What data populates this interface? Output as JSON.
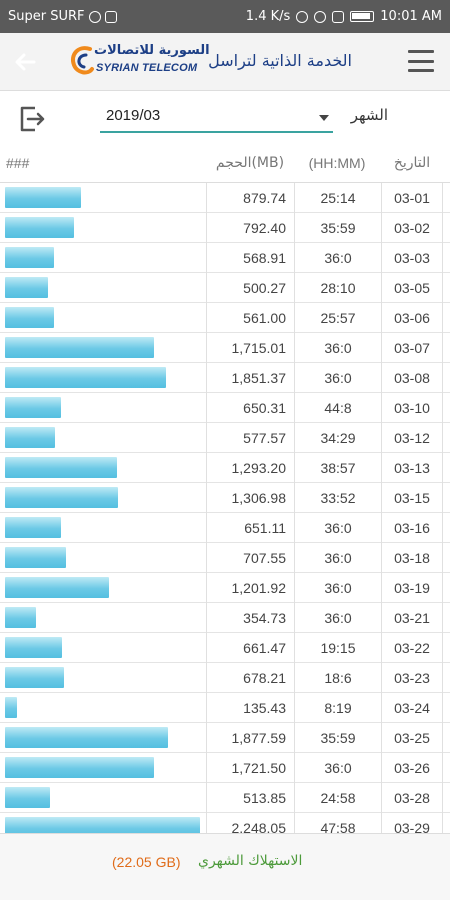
{
  "status_bar": {
    "carrier": "Super SURF",
    "speed": "1.4 K/s",
    "time": "10:01 AM"
  },
  "header": {
    "logo_arabic": "السورية للاتصالات",
    "logo_english": "SYRIAN TELECOM",
    "title": "الخدمة الذاتية لتراسل"
  },
  "filter": {
    "month_value": "2019/03",
    "month_label": "الشهر"
  },
  "table": {
    "columns": {
      "bar": "###",
      "volume": "الحجم(MB)",
      "time": "(HH:MM)",
      "date": "التاريخ"
    },
    "rows": [
      {
        "date": "03-01",
        "time": "25:14",
        "volume": "879.74",
        "mb": 879.74
      },
      {
        "date": "03-02",
        "time": "35:59",
        "volume": "792.40",
        "mb": 792.4
      },
      {
        "date": "03-03",
        "time": "36:0",
        "volume": "568.91",
        "mb": 568.91
      },
      {
        "date": "03-05",
        "time": "28:10",
        "volume": "500.27",
        "mb": 500.27
      },
      {
        "date": "03-06",
        "time": "25:57",
        "volume": "561.00",
        "mb": 561.0
      },
      {
        "date": "03-07",
        "time": "36:0",
        "volume": "1,715.01",
        "mb": 1715.01
      },
      {
        "date": "03-08",
        "time": "36:0",
        "volume": "1,851.37",
        "mb": 1851.37
      },
      {
        "date": "03-10",
        "time": "44:8",
        "volume": "650.31",
        "mb": 650.31
      },
      {
        "date": "03-12",
        "time": "34:29",
        "volume": "577.57",
        "mb": 577.57
      },
      {
        "date": "03-13",
        "time": "38:57",
        "volume": "1,293.20",
        "mb": 1293.2
      },
      {
        "date": "03-15",
        "time": "33:52",
        "volume": "1,306.98",
        "mb": 1306.98
      },
      {
        "date": "03-16",
        "time": "36:0",
        "volume": "651.11",
        "mb": 651.11
      },
      {
        "date": "03-18",
        "time": "36:0",
        "volume": "707.55",
        "mb": 707.55
      },
      {
        "date": "03-19",
        "time": "36:0",
        "volume": "1,201.92",
        "mb": 1201.92
      },
      {
        "date": "03-21",
        "time": "36:0",
        "volume": "354.73",
        "mb": 354.73
      },
      {
        "date": "03-22",
        "time": "19:15",
        "volume": "661.47",
        "mb": 661.47
      },
      {
        "date": "03-23",
        "time": "18:6",
        "volume": "678.21",
        "mb": 678.21
      },
      {
        "date": "03-24",
        "time": "8:19",
        "volume": "135.43",
        "mb": 135.43
      },
      {
        "date": "03-25",
        "time": "35:59",
        "volume": "1,877.59",
        "mb": 1877.59
      },
      {
        "date": "03-26",
        "time": "36:0",
        "volume": "1,721.50",
        "mb": 1721.5
      },
      {
        "date": "03-28",
        "time": "24:58",
        "volume": "513.85",
        "mb": 513.85
      },
      {
        "date": "03-29",
        "time": "47:58",
        "volume": "2,248.05",
        "mb": 2248.05
      }
    ]
  },
  "footer": {
    "total_label": "الاستهلاك الشهري",
    "total_value": "(22.05 GB)"
  },
  "colors": {
    "brand_blue": "#1d3f86",
    "bar_fill": "#6cc9e6",
    "total_orange": "#e06c1a",
    "label_green": "#4c9a3a",
    "accent_teal": "#3aa3a0"
  }
}
